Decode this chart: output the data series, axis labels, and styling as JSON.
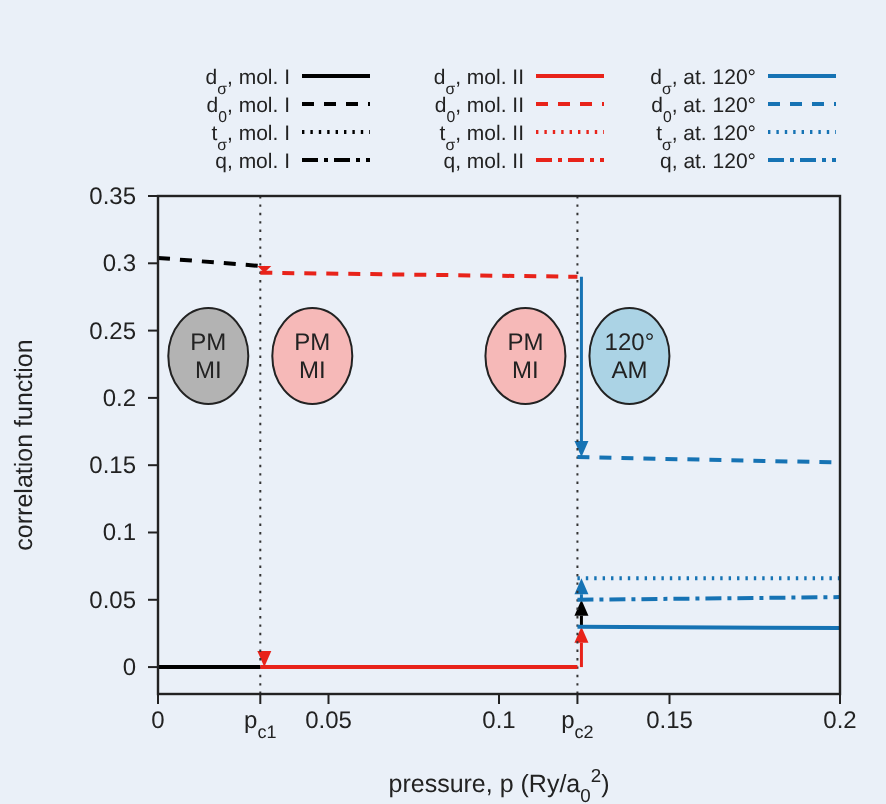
{
  "chart_data": {
    "type": "line",
    "xlabel": "pressure, p (Ry/a$_{0}$$^{2}$)",
    "ylabel": "correlation function",
    "xlim": [
      0,
      0.2
    ],
    "ylim": [
      -0.02,
      0.35
    ],
    "xticks": [
      0,
      {
        "value": 0.03,
        "label": "p$_{c1}$"
      },
      0.05,
      0.1,
      {
        "value": 0.123,
        "label": "p$_{c2}$"
      },
      0.15,
      0.2
    ],
    "yticks": [
      0,
      0.05,
      0.1,
      0.15,
      0.2,
      0.25,
      0.3,
      0.35
    ],
    "legend": "top",
    "marker": "none",
    "series": [
      {
        "name": "d$_{σ}$, mol. I",
        "color": "#000000",
        "line_style": "solid",
        "x": [
          0,
          0.03
        ],
        "values": [
          0,
          0
        ]
      },
      {
        "name": "d$_{0}$, mol. I",
        "color": "#000000",
        "line_style": "dashed",
        "x": [
          0,
          0.03
        ],
        "values": [
          0.304,
          0.298
        ]
      },
      {
        "name": "t$_{σ}$, mol. I",
        "color": "#000000",
        "line_style": "dotted",
        "values": [
          null,
          null
        ]
      },
      {
        "name": "q, mol. I",
        "color": "#000000",
        "line_style": "dashdot",
        "values": [
          null,
          null
        ]
      },
      {
        "name": "d$_{σ}$, mol. II",
        "color": "#e8231a",
        "line_style": "solid",
        "x": [
          0.03,
          0.123
        ],
        "values": [
          0,
          0
        ]
      },
      {
        "name": "d$_{0}$, mol. II",
        "color": "#e8231a",
        "line_style": "dashed",
        "x": [
          0.03,
          0.123
        ],
        "values": [
          0.293,
          0.29
        ]
      },
      {
        "name": "t$_{σ}$, mol. II",
        "color": "#e8231a",
        "line_style": "dotted",
        "values": [
          null,
          null
        ]
      },
      {
        "name": "q, mol. II",
        "color": "#e8231a",
        "line_style": "dashdot",
        "values": [
          null,
          null
        ]
      },
      {
        "name": "d$_{σ}$, at. 120°",
        "color": "#1673b4",
        "line_style": "solid",
        "x": [
          0.123,
          0.2
        ],
        "values": [
          0.03,
          0.029
        ]
      },
      {
        "name": "d$_{0}$, at. 120°",
        "color": "#1673b4",
        "line_style": "dashed",
        "x": [
          0.123,
          0.2
        ],
        "values": [
          0.156,
          0.152
        ]
      },
      {
        "name": "t$_{σ}$, at. 120°",
        "color": "#1673b4",
        "line_style": "dotted",
        "x": [
          0.123,
          0.2
        ],
        "values": [
          0.066,
          0.066
        ]
      },
      {
        "name": "q, at. 120°",
        "color": "#1673b4",
        "line_style": "dashdot",
        "x": [
          0.123,
          0.2
        ],
        "values": [
          0.05,
          0.052
        ]
      }
    ],
    "ref_lines": [
      {
        "axis": "x",
        "value": 0.03,
        "color": "#333333",
        "line_style": "dotted"
      },
      {
        "axis": "x",
        "value": 0.123,
        "color": "#333333",
        "line_style": "dotted"
      }
    ],
    "annotations": [
      "PM MI",
      "PM MI",
      "PM MI",
      "120° AM"
    ]
  }
}
